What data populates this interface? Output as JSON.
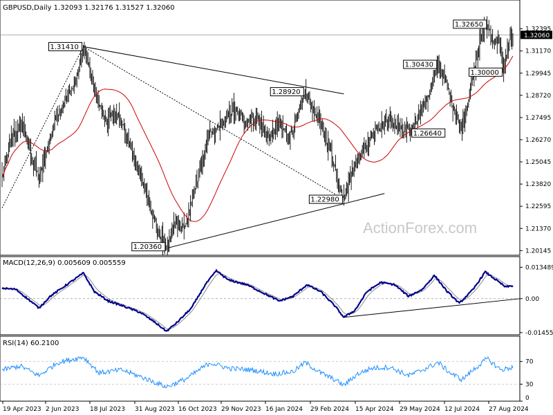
{
  "chart_data": {
    "type": "ohlc",
    "header": {
      "symbol": "GBPUSD,Daily",
      "open": "1.32093",
      "high": "1.32176",
      "low": "1.31527",
      "close": "1.32060"
    },
    "price_axis": {
      "ticks": [
        "1.32395",
        "1.31170",
        "1.29945",
        "1.28720",
        "1.27495",
        "1.26270",
        "1.25045",
        "1.23820",
        "1.22595",
        "1.21370",
        "1.20145"
      ],
      "current": "1.32060",
      "range": [
        1.1989,
        1.3345
      ]
    },
    "x_ticks": [
      "19 Apr 2023",
      "2 Jun 2023",
      "18 Jul 2023",
      "31 Aug 2023",
      "16 Oct 2023",
      "29 Nov 2023",
      "16 Jan 2024",
      "29 Feb 2024",
      "15 Apr 2024",
      "29 May 2024",
      "12 Jul 2024",
      "27 Aug 2024"
    ],
    "annotations": [
      "1.31410",
      "1.28920",
      "1.20360",
      "1.22980",
      "1.30430",
      "1.26640",
      "1.32650",
      "1.30000"
    ],
    "price_anchors": [
      {
        "d": 0,
        "v": 1.2418
      },
      {
        "d": 10,
        "v": 1.264
      },
      {
        "d": 22,
        "v": 1.271
      },
      {
        "d": 28,
        "v": 1.259
      },
      {
        "d": 40,
        "v": 1.241
      },
      {
        "d": 58,
        "v": 1.275
      },
      {
        "d": 80,
        "v": 1.295
      },
      {
        "d": 88,
        "v": 1.3141
      },
      {
        "d": 100,
        "v": 1.29
      },
      {
        "d": 112,
        "v": 1.273
      },
      {
        "d": 124,
        "v": 1.277
      },
      {
        "d": 137,
        "v": 1.262
      },
      {
        "d": 148,
        "v": 1.245
      },
      {
        "d": 158,
        "v": 1.23
      },
      {
        "d": 170,
        "v": 1.21
      },
      {
        "d": 178,
        "v": 1.2036
      },
      {
        "d": 188,
        "v": 1.218
      },
      {
        "d": 198,
        "v": 1.214
      },
      {
        "d": 210,
        "v": 1.238
      },
      {
        "d": 224,
        "v": 1.265
      },
      {
        "d": 236,
        "v": 1.27
      },
      {
        "d": 250,
        "v": 1.279
      },
      {
        "d": 262,
        "v": 1.274
      },
      {
        "d": 276,
        "v": 1.274
      },
      {
        "d": 290,
        "v": 1.264
      },
      {
        "d": 300,
        "v": 1.272
      },
      {
        "d": 310,
        "v": 1.264
      },
      {
        "d": 318,
        "v": 1.272
      },
      {
        "d": 328,
        "v": 1.2892
      },
      {
        "d": 336,
        "v": 1.28
      },
      {
        "d": 346,
        "v": 1.269
      },
      {
        "d": 356,
        "v": 1.256
      },
      {
        "d": 364,
        "v": 1.24
      },
      {
        "d": 370,
        "v": 1.2298
      },
      {
        "d": 378,
        "v": 1.245
      },
      {
        "d": 388,
        "v": 1.254
      },
      {
        "d": 398,
        "v": 1.264
      },
      {
        "d": 410,
        "v": 1.271
      },
      {
        "d": 420,
        "v": 1.273
      },
      {
        "d": 432,
        "v": 1.268
      },
      {
        "d": 442,
        "v": 1.2664
      },
      {
        "d": 452,
        "v": 1.278
      },
      {
        "d": 462,
        "v": 1.288
      },
      {
        "d": 472,
        "v": 1.3043
      },
      {
        "d": 480,
        "v": 1.295
      },
      {
        "d": 488,
        "v": 1.281
      },
      {
        "d": 496,
        "v": 1.27
      },
      {
        "d": 502,
        "v": 1.278
      },
      {
        "d": 510,
        "v": 1.298
      },
      {
        "d": 520,
        "v": 1.324
      },
      {
        "d": 526,
        "v": 1.3265
      },
      {
        "d": 532,
        "v": 1.314
      },
      {
        "d": 538,
        "v": 1.32
      },
      {
        "d": 543,
        "v": 1.3
      },
      {
        "d": 548,
        "v": 1.315
      },
      {
        "d": 553,
        "v": 1.3206
      }
    ],
    "trendlines": [
      {
        "from": {
          "d": 88,
          "v": 1.3141
        },
        "to": {
          "d": 370,
          "v": 1.288
        }
      },
      {
        "from": {
          "d": 180,
          "v": 1.203
        },
        "to": {
          "d": 414,
          "v": 1.233
        }
      },
      {
        "from": {
          "d": 0,
          "v": 1.225
        },
        "to": {
          "d": 88,
          "v": 1.3141
        },
        "dashed": true
      },
      {
        "from": {
          "d": 88,
          "v": 1.3141
        },
        "to": {
          "d": 370,
          "v": 1.2298
        },
        "dashed": true
      }
    ],
    "macd": {
      "label": "MACD(12,26,9) 0.005609 0.005559",
      "ticks": [
        "0.013489",
        "0.00",
        "-0.014554"
      ],
      "range": [
        -0.0155,
        0.0142
      ],
      "anchors": [
        {
          "d": 0,
          "v": 0.0045
        },
        {
          "d": 15,
          "v": 0.004
        },
        {
          "d": 30,
          "v": -0.0008
        },
        {
          "d": 40,
          "v": -0.004
        },
        {
          "d": 52,
          "v": 0.001
        },
        {
          "d": 70,
          "v": 0.006
        },
        {
          "d": 88,
          "v": 0.011
        },
        {
          "d": 100,
          "v": 0.003
        },
        {
          "d": 115,
          "v": -0.001
        },
        {
          "d": 130,
          "v": -0.003
        },
        {
          "d": 150,
          "v": -0.006
        },
        {
          "d": 165,
          "v": -0.01
        },
        {
          "d": 178,
          "v": -0.014
        },
        {
          "d": 190,
          "v": -0.01
        },
        {
          "d": 205,
          "v": -0.004
        },
        {
          "d": 220,
          "v": 0.006
        },
        {
          "d": 232,
          "v": 0.012
        },
        {
          "d": 245,
          "v": 0.008
        },
        {
          "d": 265,
          "v": 0.006
        },
        {
          "d": 285,
          "v": 0.002
        },
        {
          "d": 300,
          "v": -0.001
        },
        {
          "d": 315,
          "v": 0.001
        },
        {
          "d": 330,
          "v": 0.006
        },
        {
          "d": 345,
          "v": 0.003
        },
        {
          "d": 360,
          "v": -0.003
        },
        {
          "d": 370,
          "v": -0.008
        },
        {
          "d": 382,
          "v": -0.005
        },
        {
          "d": 395,
          "v": 0.003
        },
        {
          "d": 410,
          "v": 0.007
        },
        {
          "d": 425,
          "v": 0.006
        },
        {
          "d": 440,
          "v": 0.001
        },
        {
          "d": 455,
          "v": 0.004
        },
        {
          "d": 468,
          "v": 0.01
        },
        {
          "d": 482,
          "v": 0.003
        },
        {
          "d": 495,
          "v": -0.002
        },
        {
          "d": 510,
          "v": 0.004
        },
        {
          "d": 523,
          "v": 0.0115
        },
        {
          "d": 535,
          "v": 0.008
        },
        {
          "d": 545,
          "v": 0.005
        },
        {
          "d": 553,
          "v": 0.0056
        }
      ],
      "trendline": {
        "from": {
          "d": 370,
          "v": -0.008
        },
        "to": {
          "d": 553,
          "v": 0.0
        }
      }
    },
    "rsi": {
      "label": "RSI(14) 60.2100",
      "ticks": [
        "70",
        "30",
        "0"
      ],
      "range": [
        0,
        100
      ],
      "anchors": [
        {
          "d": 0,
          "v": 55
        },
        {
          "d": 20,
          "v": 62
        },
        {
          "d": 40,
          "v": 45
        },
        {
          "d": 60,
          "v": 68
        },
        {
          "d": 88,
          "v": 78
        },
        {
          "d": 105,
          "v": 50
        },
        {
          "d": 130,
          "v": 55
        },
        {
          "d": 155,
          "v": 40
        },
        {
          "d": 178,
          "v": 25
        },
        {
          "d": 200,
          "v": 40
        },
        {
          "d": 225,
          "v": 68
        },
        {
          "d": 245,
          "v": 58
        },
        {
          "d": 270,
          "v": 55
        },
        {
          "d": 295,
          "v": 48
        },
        {
          "d": 315,
          "v": 52
        },
        {
          "d": 328,
          "v": 68
        },
        {
          "d": 345,
          "v": 50
        },
        {
          "d": 360,
          "v": 38
        },
        {
          "d": 370,
          "v": 28
        },
        {
          "d": 385,
          "v": 48
        },
        {
          "d": 400,
          "v": 58
        },
        {
          "d": 420,
          "v": 60
        },
        {
          "d": 440,
          "v": 45
        },
        {
          "d": 455,
          "v": 55
        },
        {
          "d": 472,
          "v": 68
        },
        {
          "d": 485,
          "v": 50
        },
        {
          "d": 498,
          "v": 38
        },
        {
          "d": 510,
          "v": 55
        },
        {
          "d": 525,
          "v": 75
        },
        {
          "d": 540,
          "v": 55
        },
        {
          "d": 553,
          "v": 60
        }
      ]
    },
    "watermark": "ActionForex.com"
  },
  "colors": {
    "price": "#000000",
    "ma": "#cc0000",
    "macd": "#00008b",
    "signal": "#8a8a8a",
    "rsi": "#1e8fff",
    "grid": "#b0b0b0",
    "current_box": "#000000"
  }
}
